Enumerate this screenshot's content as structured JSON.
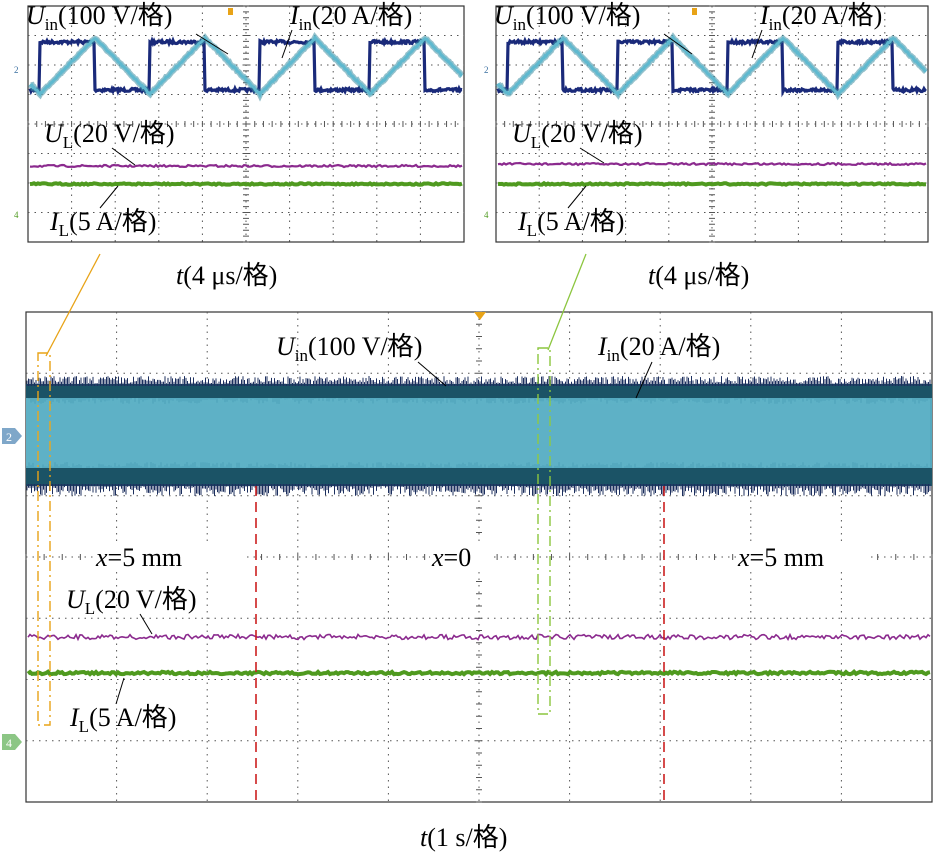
{
  "colors": {
    "u_in": "#1a2a7a",
    "i_in": "#5fb9cf",
    "u_in_band": "#1b5366",
    "u_l": "#8b2a8e",
    "i_l": "#4f9a1f",
    "grid": "#555555",
    "frame": "#333333",
    "zoom_left": "#e8a317",
    "zoom_right": "#8cc63f",
    "cursor": "#cc1f1f"
  },
  "top_left": {
    "u_in_label": "U",
    "u_in_sub": "in",
    "u_in_scale": "(100 V/格)",
    "i_in_label": "I",
    "i_in_sub": "in",
    "i_in_scale": "(20 A/格)",
    "u_l_label": "U",
    "u_l_sub": "L",
    "u_l_scale": "(20 V/格)",
    "i_l_label": "I",
    "i_l_sub": "L",
    "i_l_scale": "(5 A/格)",
    "t_label": "t",
    "t_scale": "(4 μs/格)"
  },
  "top_right": {
    "u_in_label": "U",
    "u_in_sub": "in",
    "u_in_scale": "(100 V/格)",
    "i_in_label": "I",
    "i_in_sub": "in",
    "i_in_scale": "(20 A/格)",
    "u_l_label": "U",
    "u_l_sub": "L",
    "u_l_scale": "(20 V/格)",
    "i_l_label": "I",
    "i_l_sub": "L",
    "i_l_scale": "(5 A/格)",
    "t_label": "t",
    "t_scale": "(4 μs/格)"
  },
  "bottom": {
    "u_in_label": "U",
    "u_in_sub": "in",
    "u_in_scale": "(100 V/格)",
    "i_in_label": "I",
    "i_in_sub": "in",
    "i_in_scale": "(20 A/格)",
    "u_l_label": "U",
    "u_l_sub": "L",
    "u_l_scale": "(20 V/格)",
    "i_l_label": "I",
    "i_l_sub": "L",
    "i_l_scale": "(5 A/格)",
    "x_left_var": "x",
    "x_left_val": "=5 mm",
    "x_mid_var": "x",
    "x_mid_val": "=0",
    "x_right_var": "x",
    "x_right_val": "=5 mm",
    "t_label": "t",
    "t_scale": "(1 s/格)",
    "marker_2": "2",
    "marker_4": "4"
  },
  "chart_data": [
    {
      "type": "line",
      "panel": "top_left",
      "x_unit": "μs",
      "x_per_div": 4,
      "divisions": 10,
      "series": [
        {
          "name": "U_in",
          "unit_per_div": "100 V/格",
          "shape": "square",
          "period_div": 2.55,
          "level_div": [
            0.6,
            -0.4
          ]
        },
        {
          "name": "I_in",
          "unit_per_div": "20 A/格",
          "shape": "triangle",
          "period_div": 2.55,
          "amplitude_div": 0.65
        },
        {
          "name": "U_L",
          "unit_per_div": "20 V/格",
          "shape": "dc",
          "offset_div": 1.7
        },
        {
          "name": "I_L",
          "unit_per_div": "5 A/格",
          "shape": "dc",
          "offset_div": 0.9
        }
      ]
    },
    {
      "type": "line",
      "panel": "top_right",
      "x_unit": "μs",
      "x_per_div": 4,
      "divisions": 10,
      "series": [
        {
          "name": "U_in",
          "unit_per_div": "100 V/格",
          "shape": "square",
          "period_div": 2.55,
          "level_div": [
            0.6,
            -0.4
          ]
        },
        {
          "name": "I_in",
          "unit_per_div": "20 A/格",
          "shape": "triangle",
          "period_div": 2.55,
          "amplitude_div": 0.65
        },
        {
          "name": "U_L",
          "unit_per_div": "20 V/格",
          "shape": "dc",
          "offset_div": 1.6
        },
        {
          "name": "I_L",
          "unit_per_div": "5 A/格",
          "shape": "dc",
          "offset_div": 0.9
        }
      ]
    },
    {
      "type": "line",
      "panel": "bottom",
      "x_unit": "s",
      "x_per_div": 1,
      "divisions": 10,
      "series": [
        {
          "name": "U_in",
          "unit_per_div": "100 V/格",
          "shape": "band",
          "band_div": 1.0
        },
        {
          "name": "I_in",
          "unit_per_div": "20 A/格",
          "shape": "band",
          "band_div": 0.8
        },
        {
          "name": "U_L",
          "unit_per_div": "20 V/格",
          "shape": "dc"
        },
        {
          "name": "I_L",
          "unit_per_div": "5 A/格",
          "shape": "dc"
        }
      ],
      "position_labels": [
        "x=5 mm",
        "x=0",
        "x=5 mm"
      ]
    }
  ]
}
